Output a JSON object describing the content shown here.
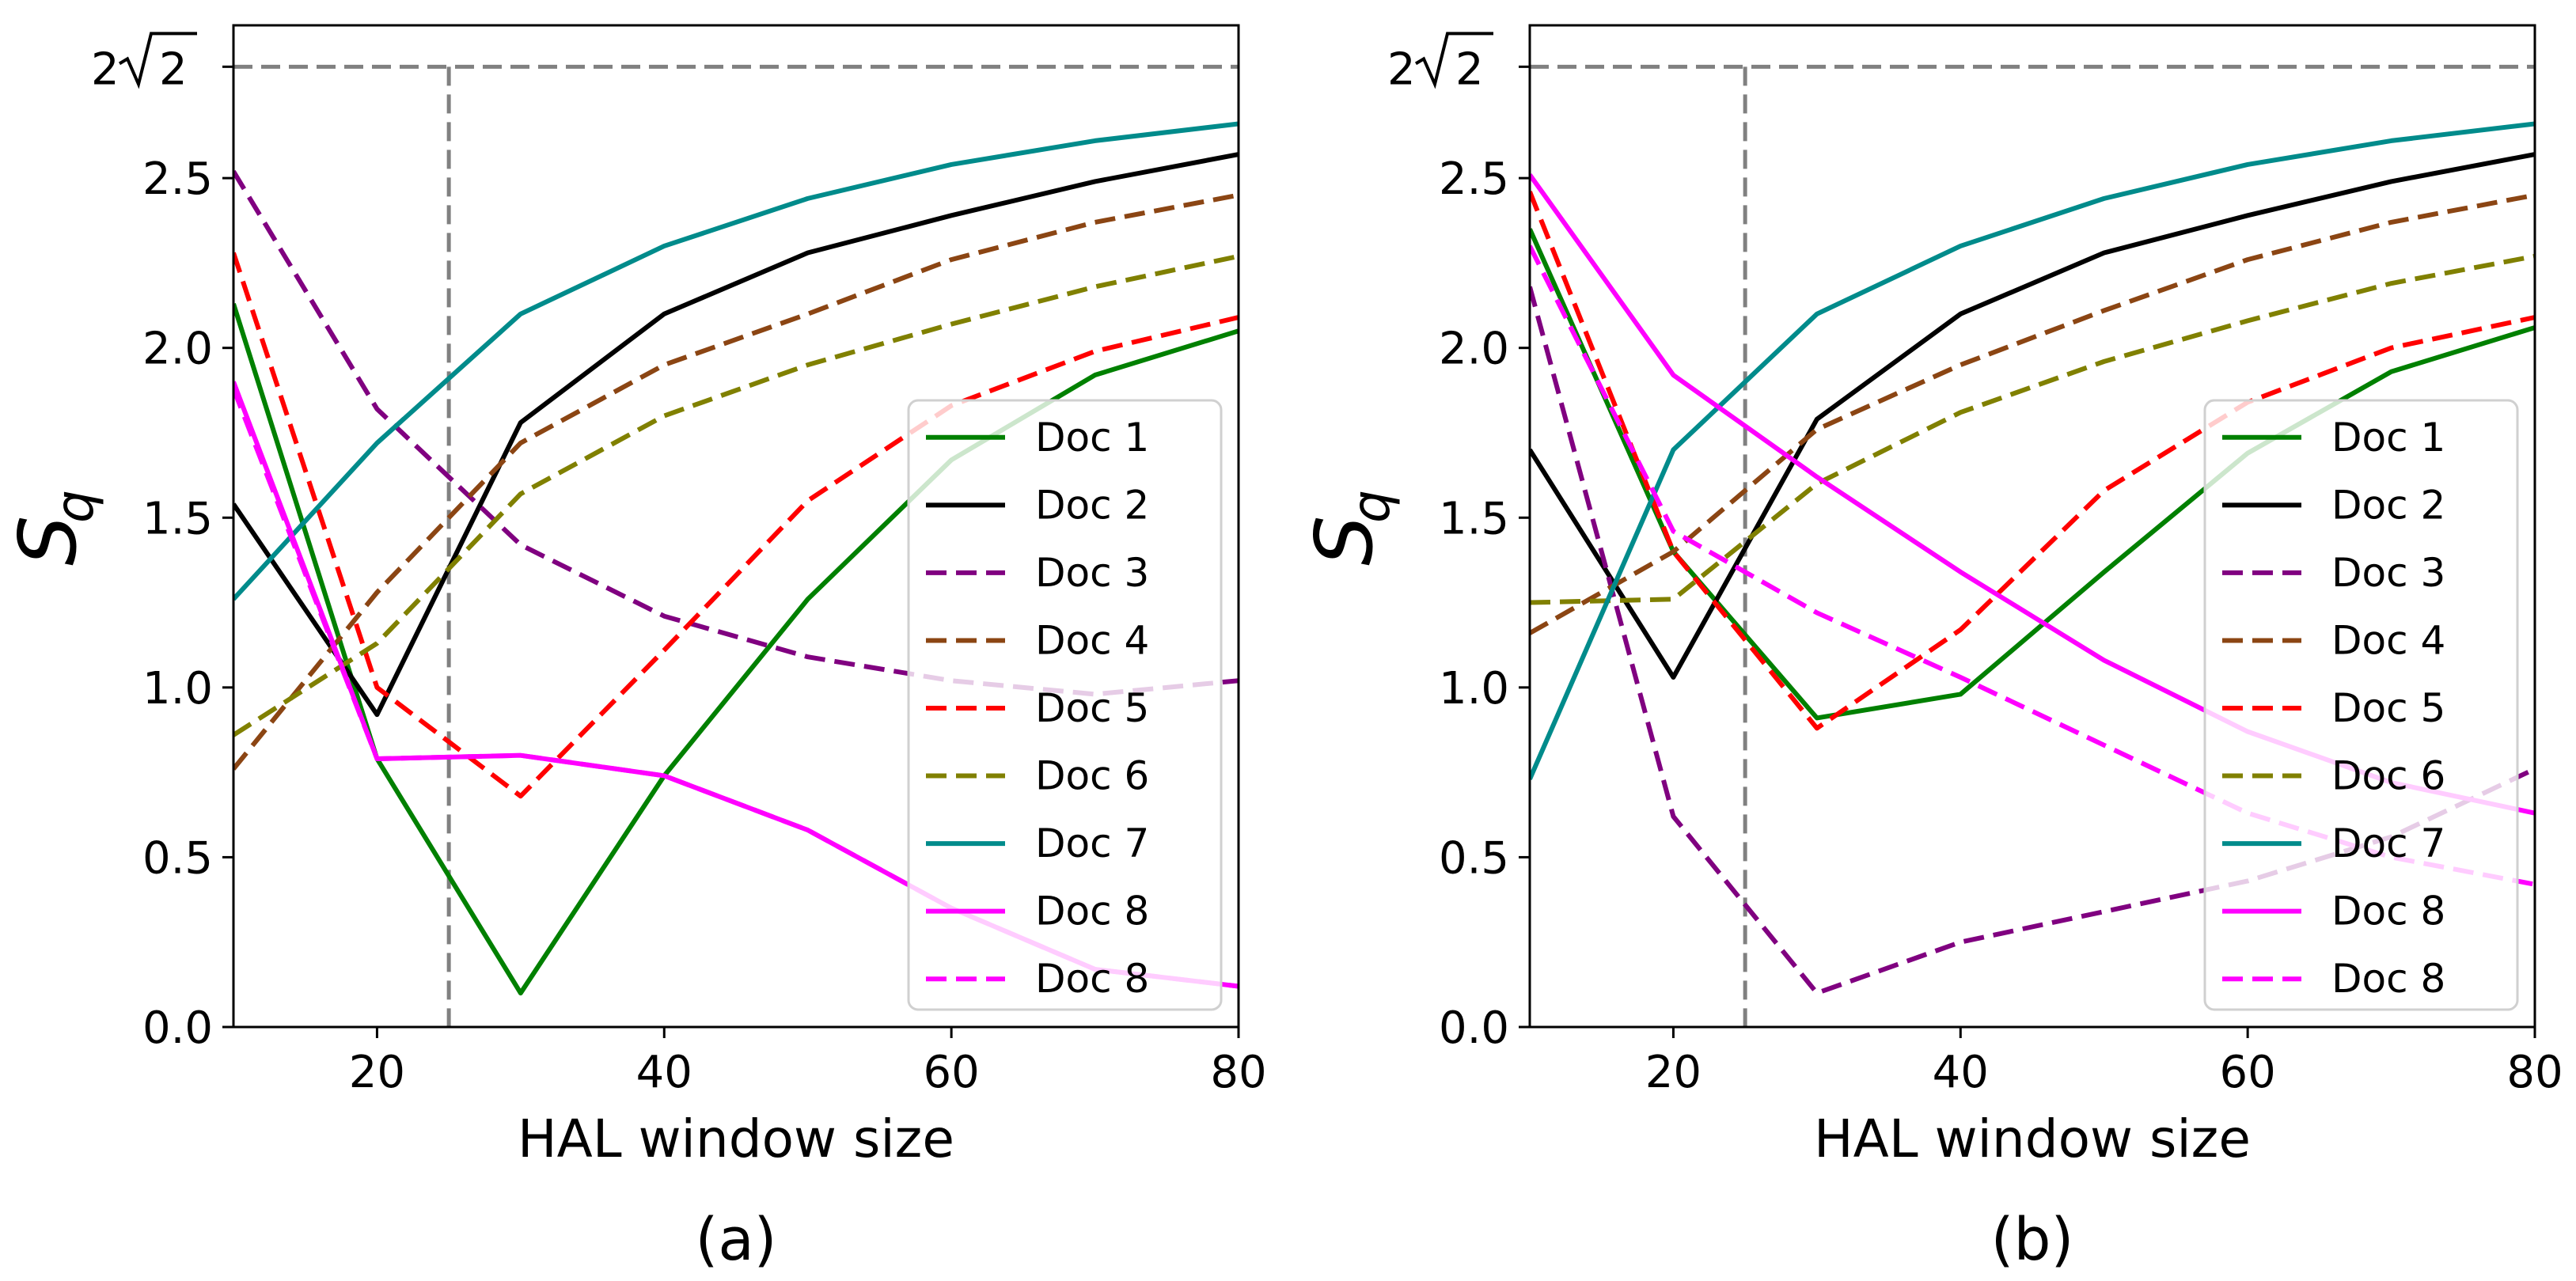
{
  "chart_data": [
    {
      "type": "line",
      "panel_label": "(a)",
      "xlabel": "HAL window size",
      "ylabel_main": "S",
      "ylabel_sub": "q",
      "xlim": [
        10,
        80
      ],
      "ylim": [
        0,
        2.95
      ],
      "xticks": [
        20,
        40,
        60,
        80
      ],
      "yticks": [
        0.0,
        0.5,
        1.0,
        1.5,
        2.0,
        2.5
      ],
      "ytick_labels": [
        "0.0",
        "0.5",
        "1.0",
        "1.5",
        "2.0",
        "2.5"
      ],
      "reference_lines": {
        "hline_value": 2.828,
        "hline_label_base": "2",
        "hline_label_radicand": "2",
        "vline_x": 25
      },
      "legend_position": "lower-right",
      "x": [
        10,
        20,
        30,
        40,
        50,
        60,
        70,
        80
      ],
      "series": [
        {
          "name": "Doc 1",
          "color": "#008000",
          "dash": "solid",
          "values": [
            2.13,
            0.79,
            0.1,
            0.74,
            1.26,
            1.67,
            1.92,
            2.05
          ]
        },
        {
          "name": "Doc 2",
          "color": "#000000",
          "dash": "solid",
          "values": [
            1.54,
            0.92,
            1.78,
            2.1,
            2.28,
            2.39,
            2.49,
            2.57
          ]
        },
        {
          "name": "Doc 3",
          "color": "#800080",
          "dash": "dashed",
          "values": [
            2.52,
            1.82,
            1.42,
            1.21,
            1.09,
            1.02,
            0.98,
            1.02
          ]
        },
        {
          "name": "Doc 4",
          "color": "#8B4513",
          "dash": "dashed",
          "values": [
            0.76,
            1.28,
            1.72,
            1.95,
            2.1,
            2.26,
            2.37,
            2.45
          ]
        },
        {
          "name": "Doc 5",
          "color": "#FF0000",
          "dash": "dashed",
          "values": [
            2.28,
            1.0,
            0.68,
            1.11,
            1.55,
            1.83,
            1.99,
            2.09
          ]
        },
        {
          "name": "Doc 6",
          "color": "#808000",
          "dash": "dashed",
          "values": [
            0.86,
            1.13,
            1.57,
            1.8,
            1.95,
            2.07,
            2.18,
            2.27
          ]
        },
        {
          "name": "Doc 7",
          "color": "#008B8B",
          "dash": "solid",
          "values": [
            1.26,
            1.72,
            2.1,
            2.3,
            2.44,
            2.54,
            2.61,
            2.66
          ]
        },
        {
          "name": "Doc 8",
          "color": "#FF00FF",
          "dash": "solid",
          "values": [
            1.9,
            0.79,
            0.8,
            0.74,
            0.58,
            0.35,
            0.17,
            0.12
          ]
        },
        {
          "name": "Doc 8",
          "color": "#FF00FF",
          "dash": "dashed",
          "values": [
            1.88,
            0.79,
            0.8,
            0.74,
            0.58,
            0.35,
            0.17,
            0.12
          ]
        }
      ]
    },
    {
      "type": "line",
      "panel_label": "(b)",
      "xlabel": "HAL window size",
      "ylabel_main": "S",
      "ylabel_sub": "q",
      "xlim": [
        10,
        80
      ],
      "ylim": [
        0,
        2.95
      ],
      "xticks": [
        20,
        40,
        60,
        80
      ],
      "yticks": [
        0.0,
        0.5,
        1.0,
        1.5,
        2.0,
        2.5
      ],
      "ytick_labels": [
        "0.0",
        "0.5",
        "1.0",
        "1.5",
        "2.0",
        "2.5"
      ],
      "reference_lines": {
        "hline_value": 2.828,
        "hline_label_base": "2",
        "hline_label_radicand": "2",
        "vline_x": 25
      },
      "legend_position": "lower-right",
      "x": [
        10,
        20,
        30,
        40,
        50,
        60,
        70,
        80
      ],
      "series": [
        {
          "name": "Doc 1",
          "color": "#008000",
          "dash": "solid",
          "values": [
            2.35,
            1.4,
            0.91,
            0.98,
            1.34,
            1.69,
            1.93,
            2.06
          ]
        },
        {
          "name": "Doc 2",
          "color": "#000000",
          "dash": "solid",
          "values": [
            1.7,
            1.03,
            1.79,
            2.1,
            2.28,
            2.39,
            2.49,
            2.57
          ]
        },
        {
          "name": "Doc 3",
          "color": "#800080",
          "dash": "dashed",
          "values": [
            2.18,
            0.62,
            0.1,
            0.25,
            0.34,
            0.43,
            0.56,
            0.76
          ]
        },
        {
          "name": "Doc 4",
          "color": "#8B4513",
          "dash": "dashed",
          "values": [
            1.16,
            1.4,
            1.76,
            1.95,
            2.11,
            2.26,
            2.37,
            2.45
          ]
        },
        {
          "name": "Doc 5",
          "color": "#FF0000",
          "dash": "dashed",
          "values": [
            2.46,
            1.4,
            0.88,
            1.17,
            1.58,
            1.84,
            2.0,
            2.09
          ]
        },
        {
          "name": "Doc 6",
          "color": "#808000",
          "dash": "dashed",
          "values": [
            1.25,
            1.26,
            1.6,
            1.81,
            1.96,
            2.08,
            2.19,
            2.27
          ]
        },
        {
          "name": "Doc 7",
          "color": "#008B8B",
          "dash": "solid",
          "values": [
            0.73,
            1.7,
            2.1,
            2.3,
            2.44,
            2.54,
            2.61,
            2.66
          ]
        },
        {
          "name": "Doc 8",
          "color": "#FF00FF",
          "dash": "solid",
          "values": [
            2.51,
            1.92,
            1.62,
            1.34,
            1.08,
            0.87,
            0.72,
            0.63
          ]
        },
        {
          "name": "Doc 8",
          "color": "#FF00FF",
          "dash": "dashed",
          "values": [
            2.3,
            1.46,
            1.22,
            1.03,
            0.83,
            0.63,
            0.5,
            0.42
          ]
        }
      ]
    }
  ]
}
